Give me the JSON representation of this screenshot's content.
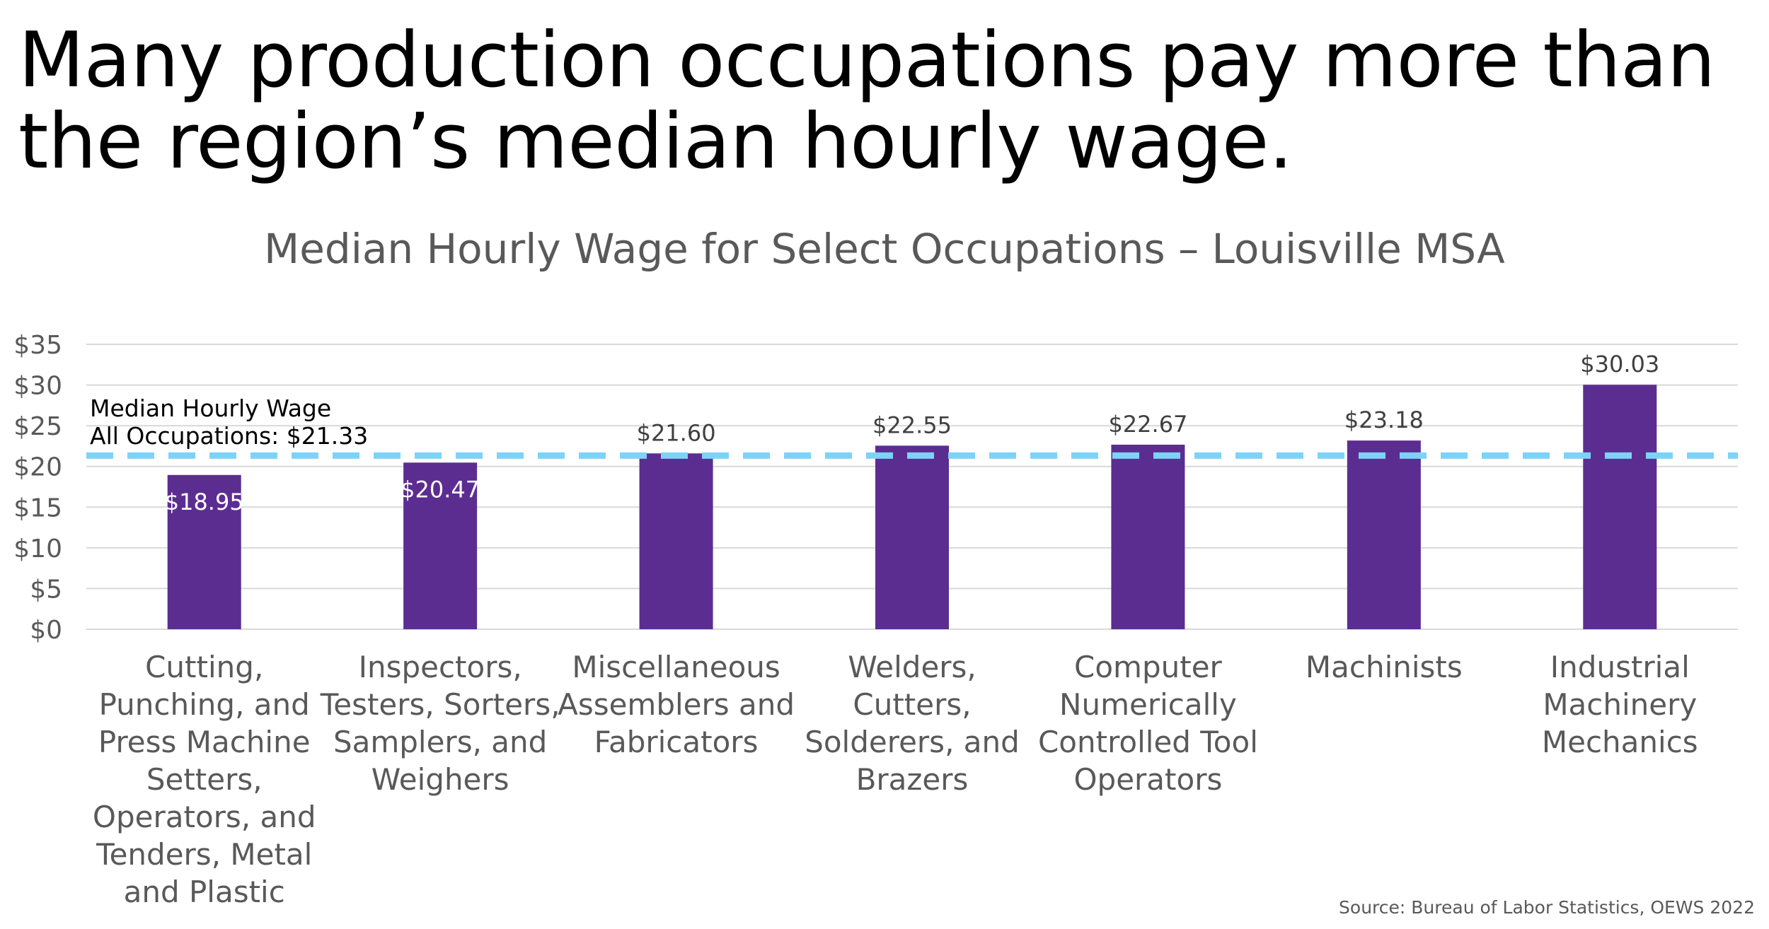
{
  "slide": {
    "title_lines": [
      "Many production occupations pay more than",
      "the region’s median hourly wage."
    ],
    "source": "Source: Bureau of Labor Statistics, OEWS 2022"
  },
  "chart_data": {
    "type": "bar",
    "title": "Median Hourly Wage for Select Occupations – Louisville MSA",
    "xlabel": "",
    "ylabel": "",
    "ylim": [
      0,
      35
    ],
    "y_ticks": [
      0,
      5,
      10,
      15,
      20,
      25,
      30,
      35
    ],
    "y_tick_labels": [
      "$0",
      "$5",
      "$10",
      "$15",
      "$20",
      "$25",
      "$30",
      "$35"
    ],
    "grid": true,
    "categories": [
      [
        "Cutting,",
        "Punching, and",
        "Press Machine",
        "Setters,",
        "Operators, and",
        "Tenders, Metal",
        "and Plastic"
      ],
      [
        "Inspectors,",
        "Testers, Sorters,",
        "Samplers, and",
        "Weighers"
      ],
      [
        "Miscellaneous",
        "Assemblers and",
        "Fabricators"
      ],
      [
        "Welders,",
        "Cutters,",
        "Solderers, and",
        "Brazers"
      ],
      [
        "Computer",
        "Numerically",
        "Controlled Tool",
        "Operators"
      ],
      [
        "Machinists"
      ],
      [
        "Industrial",
        "Machinery",
        "Mechanics"
      ]
    ],
    "values": [
      18.95,
      20.47,
      21.6,
      22.55,
      22.67,
      23.18,
      30.03
    ],
    "value_labels": [
      "$18.95",
      "$20.47",
      "$21.60",
      "$22.55",
      "$22.67",
      "$23.18",
      "$30.03"
    ],
    "value_label_inside": [
      true,
      true,
      false,
      false,
      false,
      false,
      false
    ],
    "bar_color": "#5C2D91",
    "reference_line": {
      "value": 21.33,
      "label_lines": [
        "Median Hourly Wage",
        "All Occupations: $21.33"
      ],
      "color": "#7DD3F7",
      "style": "dashed"
    }
  }
}
